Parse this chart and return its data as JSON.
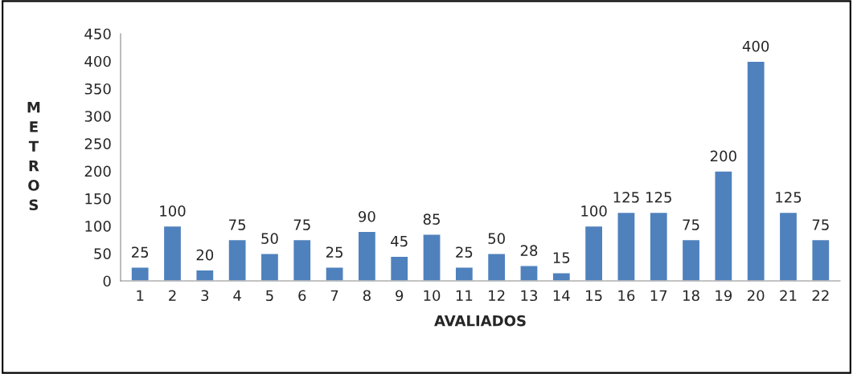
{
  "chart_data": {
    "type": "bar",
    "xlabel": "AVALIADOS",
    "ylabel": "METROS",
    "categories": [
      "1",
      "2",
      "3",
      "4",
      "5",
      "6",
      "7",
      "8",
      "9",
      "10",
      "11",
      "12",
      "13",
      "14",
      "15",
      "16",
      "17",
      "18",
      "19",
      "20",
      "21",
      "22"
    ],
    "values": [
      25,
      100,
      20,
      75,
      50,
      75,
      25,
      90,
      45,
      85,
      25,
      50,
      28,
      15,
      100,
      125,
      125,
      75,
      200,
      400,
      125,
      75
    ],
    "color": "#4f81bd",
    "data_labels": true,
    "ylim": [
      0,
      450
    ],
    "yticks": [
      0,
      50,
      100,
      150,
      200,
      250,
      300,
      350,
      400,
      450
    ],
    "grid": false,
    "legend": false
  }
}
